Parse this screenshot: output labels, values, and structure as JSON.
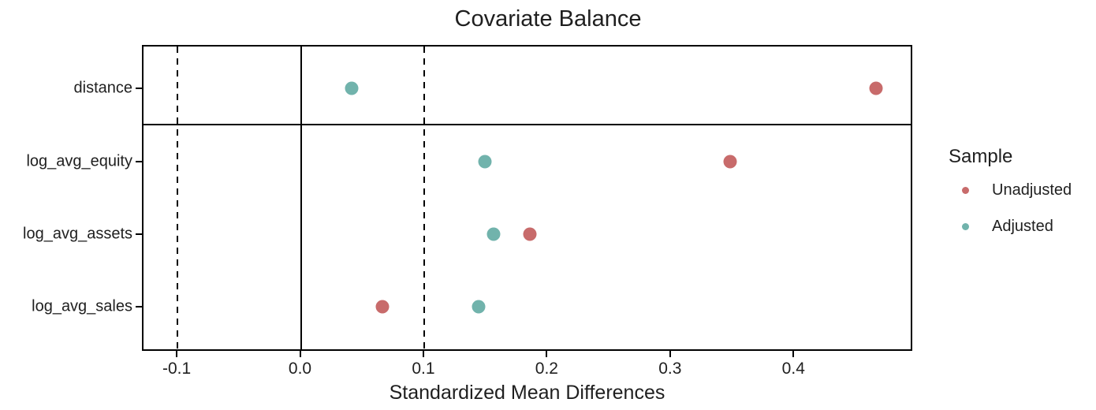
{
  "chart_data": {
    "type": "scatter",
    "title": "Covariate Balance",
    "xlabel": "Standardized Mean Differences",
    "ylabel": "",
    "categories": [
      "distance",
      "log_avg_equity",
      "log_avg_assets",
      "log_avg_sales"
    ],
    "series": [
      {
        "name": "Unadjusted",
        "color": "#c86b6b",
        "values": [
          0.466,
          0.348,
          0.186,
          0.066
        ]
      },
      {
        "name": "Adjusted",
        "color": "#71b3ac",
        "values": [
          0.041,
          0.149,
          0.156,
          0.144
        ]
      }
    ],
    "x_ticks": [
      -0.1,
      0.0,
      0.1,
      0.2,
      0.3,
      0.4
    ],
    "x_tick_labels": [
      "-0.1",
      "0.0",
      "0.1",
      "0.2",
      "0.3",
      "0.4"
    ],
    "xlim": [
      -0.1288,
      0.4957
    ],
    "reference_lines": {
      "solid": [
        0.0
      ],
      "dashed": [
        -0.1,
        0.1
      ]
    },
    "separator_after_category": "distance",
    "grid": false,
    "legend": {
      "title": "Sample",
      "position": "right",
      "items": [
        {
          "label": "Unadjusted",
          "color": "#c86b6b"
        },
        {
          "label": "Adjusted",
          "color": "#71b3ac"
        }
      ]
    }
  }
}
